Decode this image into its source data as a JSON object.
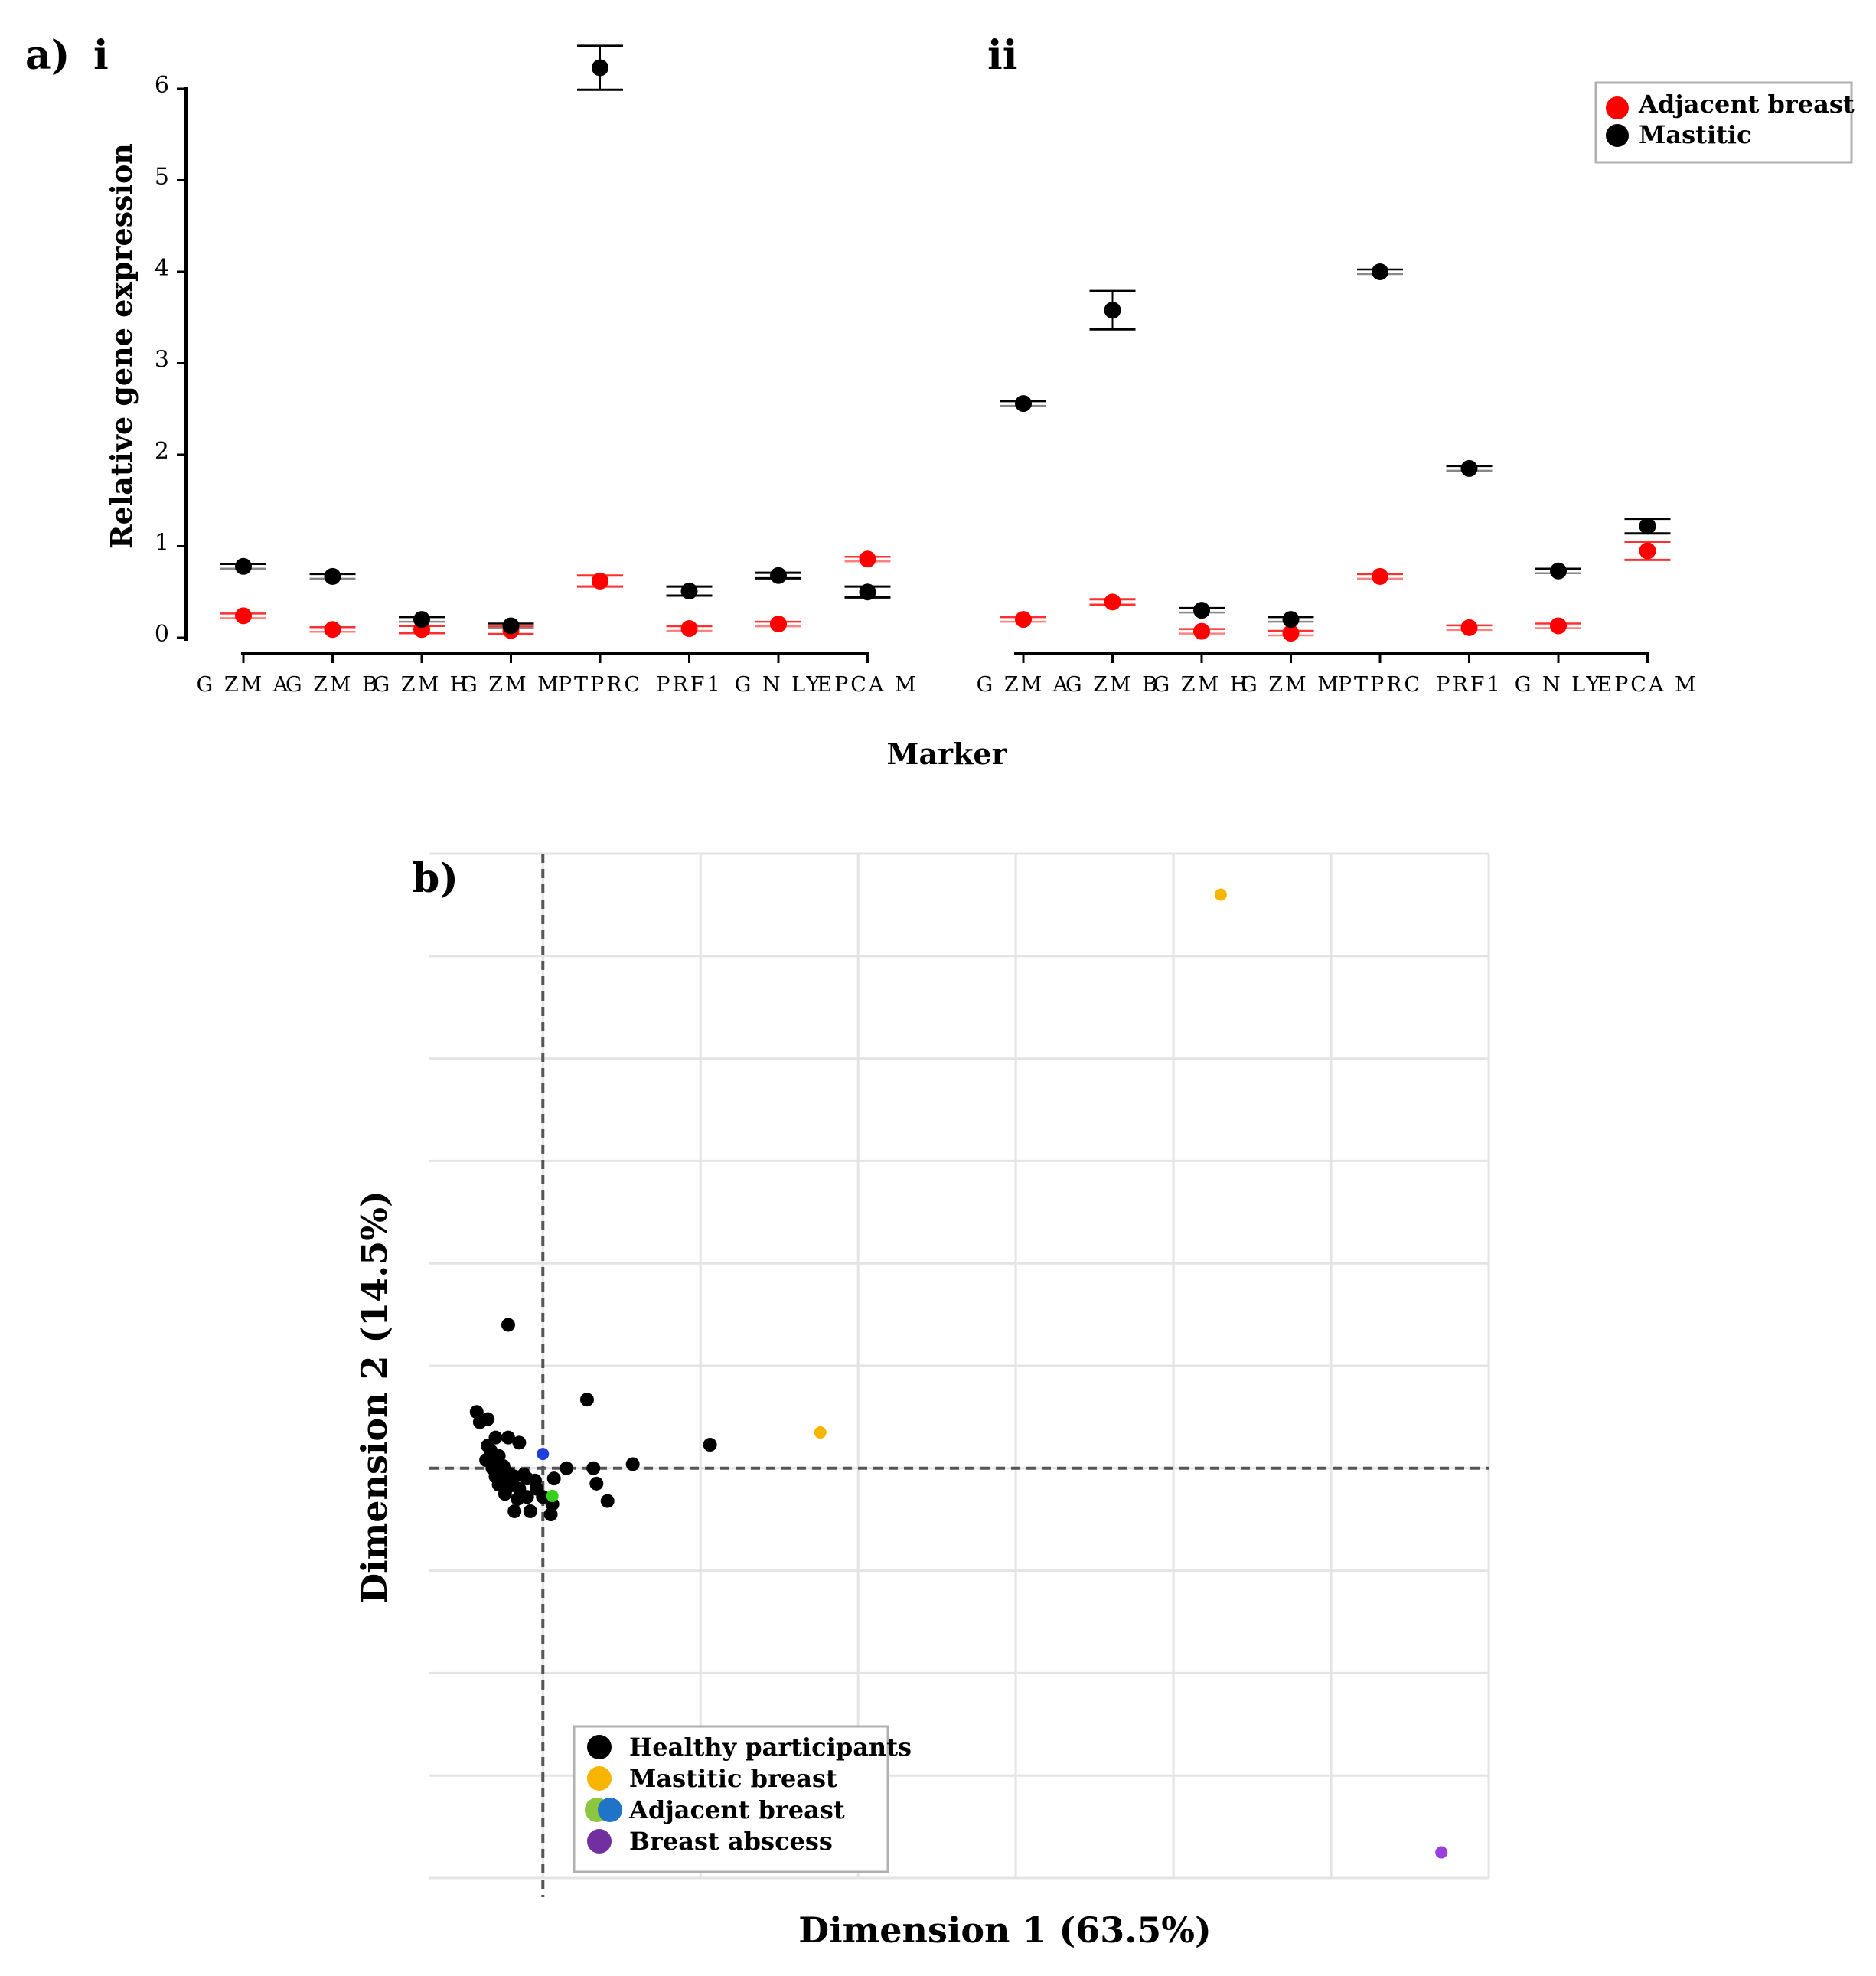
{
  "panel_a": {
    "label": "a)",
    "sub_i": "i",
    "sub_ii": "ii",
    "ylabel": "Relative gene expression",
    "xlabel": "Marker",
    "legend": {
      "adjacent": {
        "label": "Adjacent breast",
        "color": "#ff0000"
      },
      "mastitic": {
        "label": "Mastitic",
        "color": "#000000"
      }
    }
  },
  "panel_b": {
    "label": "b)",
    "xlabel": "Dimension 1 (63.5%)",
    "ylabel": "Dimension 2 (14.5%)",
    "legend": [
      {
        "label": "Healthy participants",
        "color": "#000000",
        "color2": null
      },
      {
        "label": "Mastitic breast",
        "color": "#f7b500",
        "color2": null
      },
      {
        "label": "Adjacent breast",
        "color": "#8cc63f",
        "color2": "#1f74c7"
      },
      {
        "label": "Breast abscess",
        "color": "#7030a0",
        "color2": null
      }
    ]
  },
  "chart_data": [
    {
      "type": "scatter",
      "title": "i",
      "xlabel": "Marker",
      "ylabel": "Relative gene expression",
      "categories": [
        "G ZM A",
        "G ZM B",
        "G ZM H",
        "G ZM M",
        "PTPRC",
        "PRF1",
        "G N LY",
        "EPCA M"
      ],
      "ylim": [
        0,
        6
      ],
      "yticks": [
        "0",
        "1",
        "2",
        "3",
        "4",
        "5",
        "6"
      ],
      "series": [
        {
          "name": "Adjacent breast",
          "color": "#ff0000",
          "values": [
            0.24,
            0.09,
            0.09,
            0.08,
            0.62,
            0.1,
            0.15,
            0.86
          ],
          "err": [
            0.0,
            0.0,
            0.04,
            0.04,
            0.06,
            0.0,
            0.0,
            0.0
          ]
        },
        {
          "name": "Mastitic",
          "color": "#000000",
          "values": [
            0.78,
            0.67,
            0.2,
            0.13,
            6.23,
            0.51,
            0.68,
            0.5
          ],
          "err": [
            0.0,
            0.0,
            0.0,
            0.0,
            0.24,
            0.05,
            0.03,
            0.06
          ]
        }
      ]
    },
    {
      "type": "scatter",
      "title": "ii",
      "xlabel": "Marker",
      "ylabel": "Relative gene expression",
      "categories": [
        "G ZM A",
        "G ZM B",
        "G ZM H",
        "G ZM M",
        "PTPRC",
        "PRF1",
        "G N LY",
        "EPCA M"
      ],
      "ylim": [
        0,
        6
      ],
      "series": [
        {
          "name": "Adjacent breast",
          "color": "#ff0000",
          "values": [
            0.2,
            0.39,
            0.07,
            0.05,
            0.67,
            0.11,
            0.13,
            0.95
          ],
          "err": [
            0.0,
            0.03,
            0.0,
            0.0,
            0.0,
            0.0,
            0.0,
            0.1
          ]
        },
        {
          "name": "Mastitic",
          "color": "#000000",
          "values": [
            2.56,
            3.58,
            0.3,
            0.2,
            4.0,
            1.85,
            0.73,
            1.22
          ],
          "err": [
            0.0,
            0.21,
            0.0,
            0.0,
            0.0,
            0.0,
            0.0,
            0.08
          ]
        }
      ]
    },
    {
      "type": "scatter",
      "title": "",
      "xlabel": "Dimension 1 (63.5%)",
      "ylabel": "Dimension 2 (14.5%)",
      "xlim": [
        -0.72,
        6.0
      ],
      "ylim": [
        -4.0,
        6.0
      ],
      "grid": true,
      "series": [
        {
          "name": "Healthy participants",
          "color": "#000000",
          "points": [
            [
              -0.22,
              1.4
            ],
            [
              -0.42,
              0.55
            ],
            [
              -0.35,
              0.48
            ],
            [
              -0.4,
              0.45
            ],
            [
              -0.22,
              0.3
            ],
            [
              -0.15,
              0.25
            ],
            [
              0.28,
              0.67
            ],
            [
              -0.33,
              0.17
            ],
            [
              -0.28,
              0.12
            ],
            [
              -0.36,
              0.08
            ],
            [
              -0.3,
              0.05
            ],
            [
              -0.25,
              0.02
            ],
            [
              -0.32,
              0.0
            ],
            [
              -0.27,
              -0.02
            ],
            [
              -0.22,
              -0.05
            ],
            [
              -0.3,
              -0.08
            ],
            [
              -0.18,
              -0.08
            ],
            [
              -0.12,
              -0.06
            ],
            [
              -0.26,
              -0.12
            ],
            [
              -0.2,
              -0.13
            ],
            [
              -0.1,
              -0.1
            ],
            [
              -0.05,
              -0.12
            ],
            [
              -0.28,
              -0.16
            ],
            [
              -0.22,
              -0.18
            ],
            [
              -0.15,
              -0.2
            ],
            [
              -0.24,
              -0.25
            ],
            [
              -0.16,
              -0.3
            ],
            [
              -0.1,
              -0.28
            ],
            [
              -0.04,
              -0.2
            ],
            [
              0.0,
              -0.28
            ],
            [
              0.06,
              -0.35
            ],
            [
              -0.18,
              -0.42
            ],
            [
              -0.08,
              -0.42
            ],
            [
              0.05,
              -0.45
            ],
            [
              0.07,
              -0.1
            ],
            [
              0.15,
              0.0
            ],
            [
              0.32,
              0.0
            ],
            [
              0.34,
              -0.15
            ],
            [
              0.41,
              -0.32
            ],
            [
              0.57,
              0.04
            ],
            [
              1.06,
              0.23
            ],
            [
              -0.3,
              0.3
            ],
            [
              -0.35,
              0.22
            ]
          ]
        },
        {
          "name": "Mastitic breast",
          "color": "#f7b500",
          "points": [
            [
              4.3,
              5.6
            ],
            [
              1.76,
              0.35
            ]
          ]
        },
        {
          "name": "Adjacent breast (1)",
          "color": "#35d11a",
          "points": [
            [
              0.06,
              -0.27
            ]
          ]
        },
        {
          "name": "Adjacent breast (2)",
          "color": "#1d3fdc",
          "points": [
            [
              0.0,
              0.14
            ]
          ]
        },
        {
          "name": "Breast abscess",
          "color": "#9a3ee0",
          "points": [
            [
              5.7,
              -3.75
            ]
          ]
        }
      ]
    }
  ]
}
